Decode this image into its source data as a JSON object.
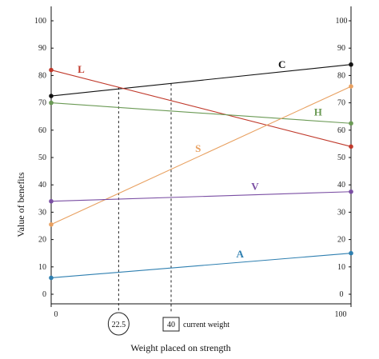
{
  "chart_data": {
    "type": "line",
    "xlabel": "Weight placed on strength",
    "ylabel": "Value of benefits",
    "xlim": [
      0,
      100
    ],
    "ylim": [
      0,
      100
    ],
    "x_tick_labels": [
      "0",
      "100"
    ],
    "y_ticks": [
      "0",
      "10",
      "20",
      "30",
      "40",
      "50",
      "60",
      "70",
      "80",
      "90",
      "100"
    ],
    "grid": false,
    "series": [
      {
        "name": "C",
        "color": "#111111",
        "x": [
          0,
          100
        ],
        "y": [
          72.5,
          84
        ]
      },
      {
        "name": "L",
        "color": "#c0392b",
        "x": [
          0,
          100
        ],
        "y": [
          82,
          54
        ]
      },
      {
        "name": "H",
        "color": "#6b9a55",
        "x": [
          0,
          100
        ],
        "y": [
          70,
          62.5
        ]
      },
      {
        "name": "S",
        "color": "#e8a060",
        "x": [
          0,
          100
        ],
        "y": [
          25.5,
          76
        ]
      },
      {
        "name": "V",
        "color": "#7a4ea3",
        "x": [
          0,
          100
        ],
        "y": [
          34,
          37.5
        ]
      },
      {
        "name": "A",
        "color": "#2e7fb0",
        "x": [
          0,
          100
        ],
        "y": [
          6,
          15
        ]
      }
    ],
    "reference_lines": [
      {
        "x": 22.5,
        "label": "22.5"
      },
      {
        "x": 40,
        "label": "40",
        "note": "current weight"
      }
    ]
  }
}
